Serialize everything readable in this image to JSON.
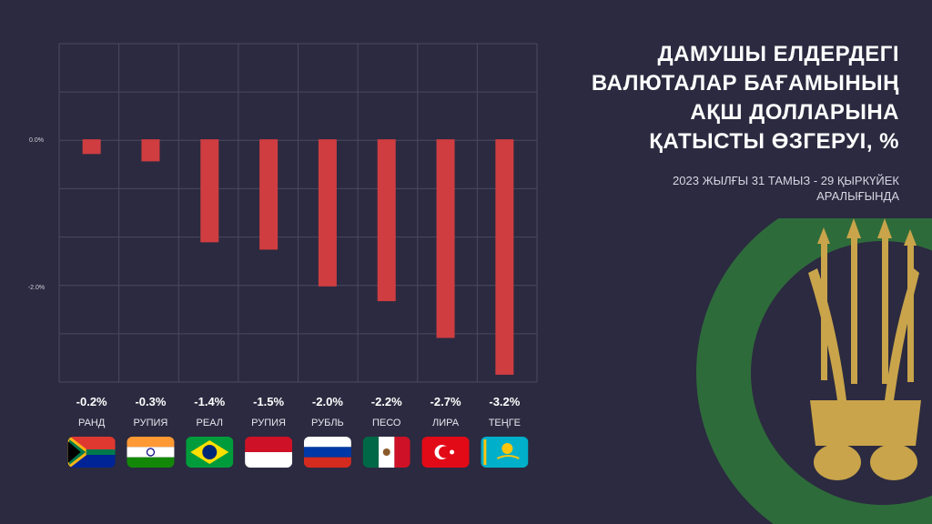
{
  "header": {
    "title_lines": [
      "ДАМУШЫ ЕЛДЕРДЕГІ",
      "ВАЛЮТАЛАР БАҒАМЫНЫҢ",
      "АҚШ ДОЛЛАРЫНА",
      "ҚАТЫСТЫ ӨЗГЕРУІ, %"
    ],
    "subtitle_lines": [
      "2023 ЖЫЛҒЫ 31 ТАМЫЗ - 29 ҚЫРКҮЙЕК",
      "АРАЛЫҒЫНДА"
    ]
  },
  "chart_data": {
    "type": "bar",
    "categories": [
      "РАНД",
      "РУПИЯ",
      "РЕАЛ",
      "РУПИЯ",
      "РУБЛЬ",
      "ПЕСО",
      "ЛИРА",
      "ТЕҢГЕ"
    ],
    "values": [
      -0.2,
      -0.3,
      -1.4,
      -1.5,
      -2.0,
      -2.2,
      -2.7,
      -3.2
    ],
    "value_labels": [
      "-0.2%",
      "-0.3%",
      "-1.4%",
      "-1.5%",
      "-2.0%",
      "-2.2%",
      "-2.7%",
      "-3.2%"
    ],
    "y_tick_labels": [
      "0.0%",
      "-2.0%"
    ],
    "y_tick_values": [
      0,
      -2
    ],
    "ylim": [
      -3.3,
      1.3
    ],
    "bar_color": "#cf3d41",
    "grid": true,
    "flags": [
      "flag-south-africa",
      "flag-india",
      "flag-brazil",
      "flag-indonesia",
      "flag-russia",
      "flag-mexico",
      "flag-turkey",
      "flag-kazakhstan"
    ]
  },
  "colors": {
    "background": "#2b2a40",
    "bar": "#cf3d41",
    "emblem_green": "#2e6b3a",
    "emblem_gold": "#c9a44a"
  }
}
